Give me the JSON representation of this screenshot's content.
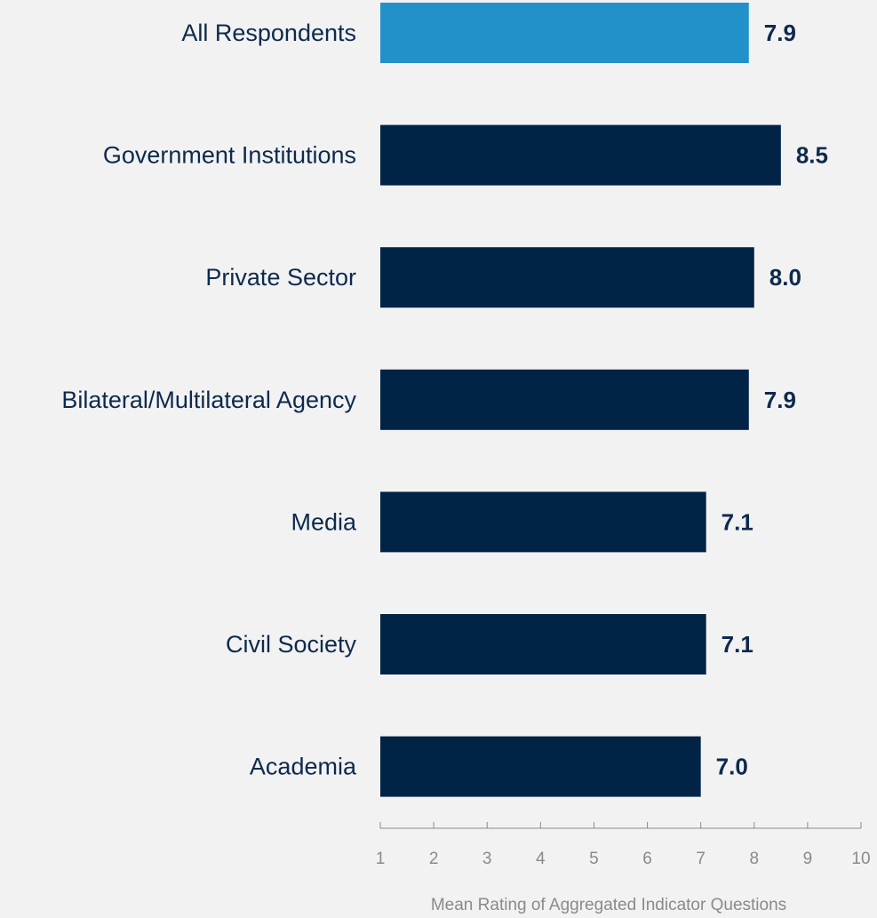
{
  "chart_data": {
    "type": "bar",
    "orientation": "horizontal",
    "categories": [
      "All Respondents",
      "Government Institutions",
      "Private Sector",
      "Bilateral/Multilateral Agency",
      "Media",
      "Civil Society",
      "Academia"
    ],
    "values": [
      7.9,
      8.5,
      8.0,
      7.9,
      7.1,
      7.1,
      7.0
    ],
    "value_labels": [
      "7.9",
      "8.5",
      "8.0",
      "7.9",
      "7.1",
      "7.1",
      "7.0"
    ],
    "bar_colors": [
      "#2391c9",
      "#012345",
      "#012345",
      "#012345",
      "#012345",
      "#012345",
      "#012345"
    ],
    "xlabel": "Mean Rating of Aggregated Indicator Questions",
    "xlim": [
      1,
      10
    ],
    "xticks": [
      1,
      2,
      3,
      4,
      5,
      6,
      7,
      8,
      9,
      10
    ],
    "grid": false,
    "legend": "none"
  },
  "colors": {
    "background": "#f2f2f2",
    "highlight_bar": "#2391c9",
    "bar": "#012345",
    "label_text": "#0d2a4d",
    "axis": "#8a8a8a"
  }
}
